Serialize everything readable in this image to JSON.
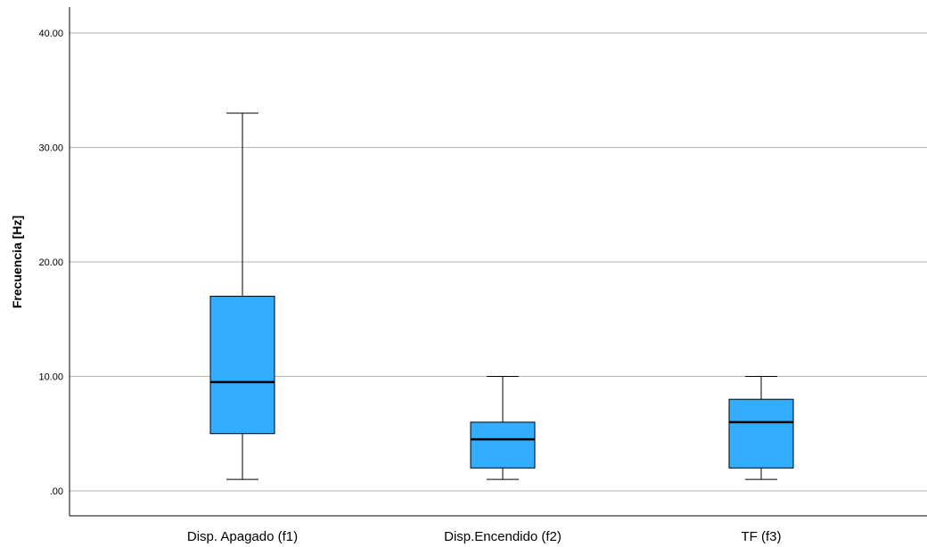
{
  "chart_data": {
    "type": "boxplot",
    "ylabel": "Frecuencia [Hz]",
    "xlabel": "",
    "ylim": [
      -2,
      41
    ],
    "yticks": [
      0,
      10,
      20,
      30,
      40
    ],
    "ytick_labels": [
      ".00",
      "10.00",
      "20.00",
      "30.00",
      "40.00"
    ],
    "grid": true,
    "box_color": "#33adff",
    "categories": [
      "Disp. Apagado (f1)",
      "Disp.Encendido (f2)",
      "TF (f3)"
    ],
    "boxes": [
      {
        "category": "Disp. Apagado (f1)",
        "min": 1,
        "q1": 5,
        "median": 9.5,
        "q3": 17,
        "max": 33
      },
      {
        "category": "Disp.Encendido (f2)",
        "min": 1,
        "q1": 2,
        "median": 4.5,
        "q3": 6,
        "max": 10
      },
      {
        "category": "TF (f3)",
        "min": 1,
        "q1": 2,
        "median": 6,
        "q3": 8,
        "max": 10
      }
    ]
  }
}
